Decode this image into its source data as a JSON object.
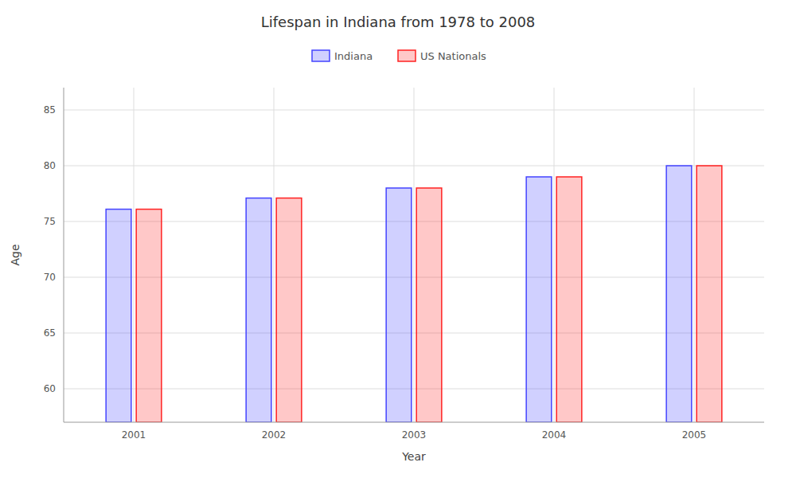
{
  "chart_data": {
    "type": "bar",
    "title": "Lifespan in Indiana from 1978 to 2008",
    "x_label": "Year",
    "y_label": "Age",
    "categories": [
      "2001",
      "2002",
      "2003",
      "2004",
      "2005"
    ],
    "series": [
      {
        "name": "Indiana",
        "color": "#4444ff",
        "values": [
          76.1,
          77.1,
          78.0,
          79.0,
          80.0
        ]
      },
      {
        "name": "US Nationals",
        "color": "#ff2222",
        "values": [
          76.1,
          77.1,
          78.0,
          79.0,
          80.0
        ]
      }
    ],
    "ylim": [
      57,
      87
    ],
    "yticks": [
      60,
      65,
      70,
      75,
      80,
      85
    ],
    "grid": true,
    "legend": "upper center"
  }
}
